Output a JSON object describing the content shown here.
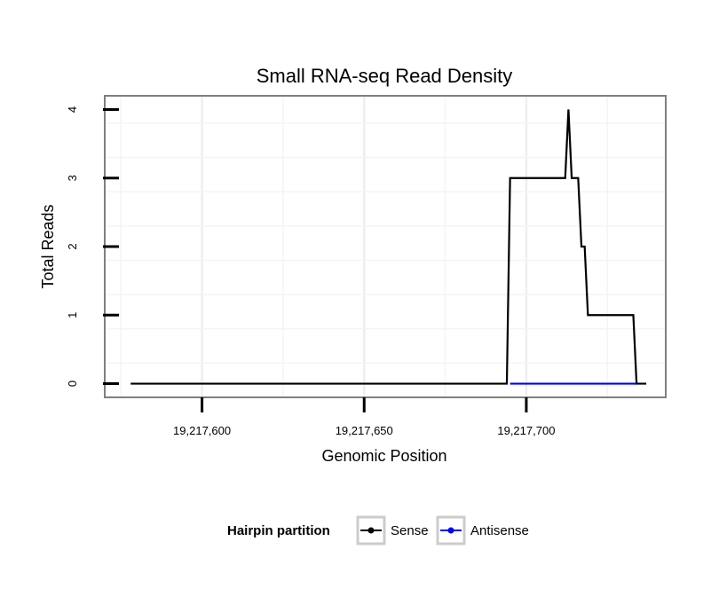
{
  "chart_data": {
    "type": "line",
    "title": "Small RNA-seq Read Density",
    "xlabel": "Genomic Position",
    "ylabel": "Total Reads",
    "xlim": [
      19217570,
      19217743
    ],
    "ylim": [
      -0.2,
      4.2
    ],
    "x_ticks": [
      19217600,
      19217650,
      19217700
    ],
    "x_tick_labels": [
      "19,217,600",
      "19,217,650",
      "19,217,700"
    ],
    "y_ticks": [
      0,
      1,
      2,
      3,
      4
    ],
    "y_tick_labels": [
      "0",
      "1",
      "2",
      "3",
      "4"
    ],
    "grid": true,
    "legend": {
      "title": "Hairpin partition",
      "position": "bottom",
      "entries": [
        {
          "label": "Sense",
          "color": "#000000"
        },
        {
          "label": "Antisense",
          "color": "#0000ff"
        }
      ]
    },
    "series": [
      {
        "name": "Sense",
        "color": "#000000",
        "x": [
          19217578,
          19217694,
          19217695,
          19217712,
          19217713,
          19217714,
          19217715,
          19217716,
          19217717,
          19217718,
          19217719,
          19217720,
          19217733,
          19217734,
          19217737
        ],
        "y": [
          0,
          0,
          3,
          3,
          4,
          3,
          3,
          3,
          2,
          2,
          1,
          1,
          1,
          0,
          0
        ]
      },
      {
        "name": "Antisense",
        "color": "#0000ff",
        "x": [
          19217695,
          19217734
        ],
        "y": [
          0,
          0
        ]
      }
    ]
  }
}
